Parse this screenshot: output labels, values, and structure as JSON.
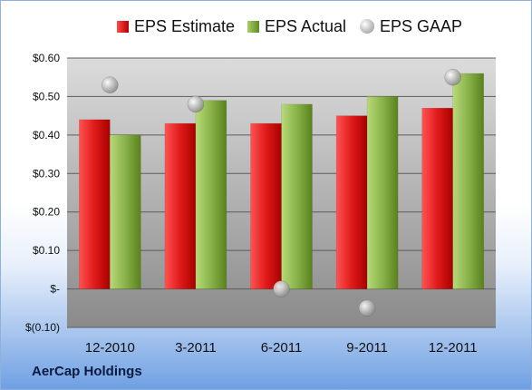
{
  "company": "AerCap Holdings",
  "chart_data": {
    "type": "bar",
    "categories": [
      "12-2010",
      "3-2011",
      "6-2011",
      "9-2011",
      "12-2011"
    ],
    "series": [
      {
        "name": "EPS Estimate",
        "values": [
          0.44,
          0.43,
          0.43,
          0.45,
          0.47
        ],
        "color": "#d81f1f"
      },
      {
        "name": "EPS Actual",
        "values": [
          0.4,
          0.49,
          0.48,
          0.5,
          0.56
        ],
        "color": "#7aa63a"
      }
    ],
    "gaap": {
      "name": "EPS GAAP",
      "values": [
        0.53,
        0.48,
        0.0,
        -0.05,
        0.55
      ],
      "color": "#b5b5b5"
    },
    "y_ticks": [
      {
        "value": 0.6,
        "label": "$0.60"
      },
      {
        "value": 0.5,
        "label": "$0.50"
      },
      {
        "value": 0.4,
        "label": "$0.40"
      },
      {
        "value": 0.3,
        "label": "$0.30"
      },
      {
        "value": 0.2,
        "label": "$0.20"
      },
      {
        "value": 0.1,
        "label": "$0.10"
      },
      {
        "value": 0.0,
        "label": "$-"
      },
      {
        "value": -0.1,
        "label": "$(0.10)"
      }
    ],
    "ylim": [
      -0.1,
      0.6
    ],
    "grid": true,
    "legend": "top"
  }
}
